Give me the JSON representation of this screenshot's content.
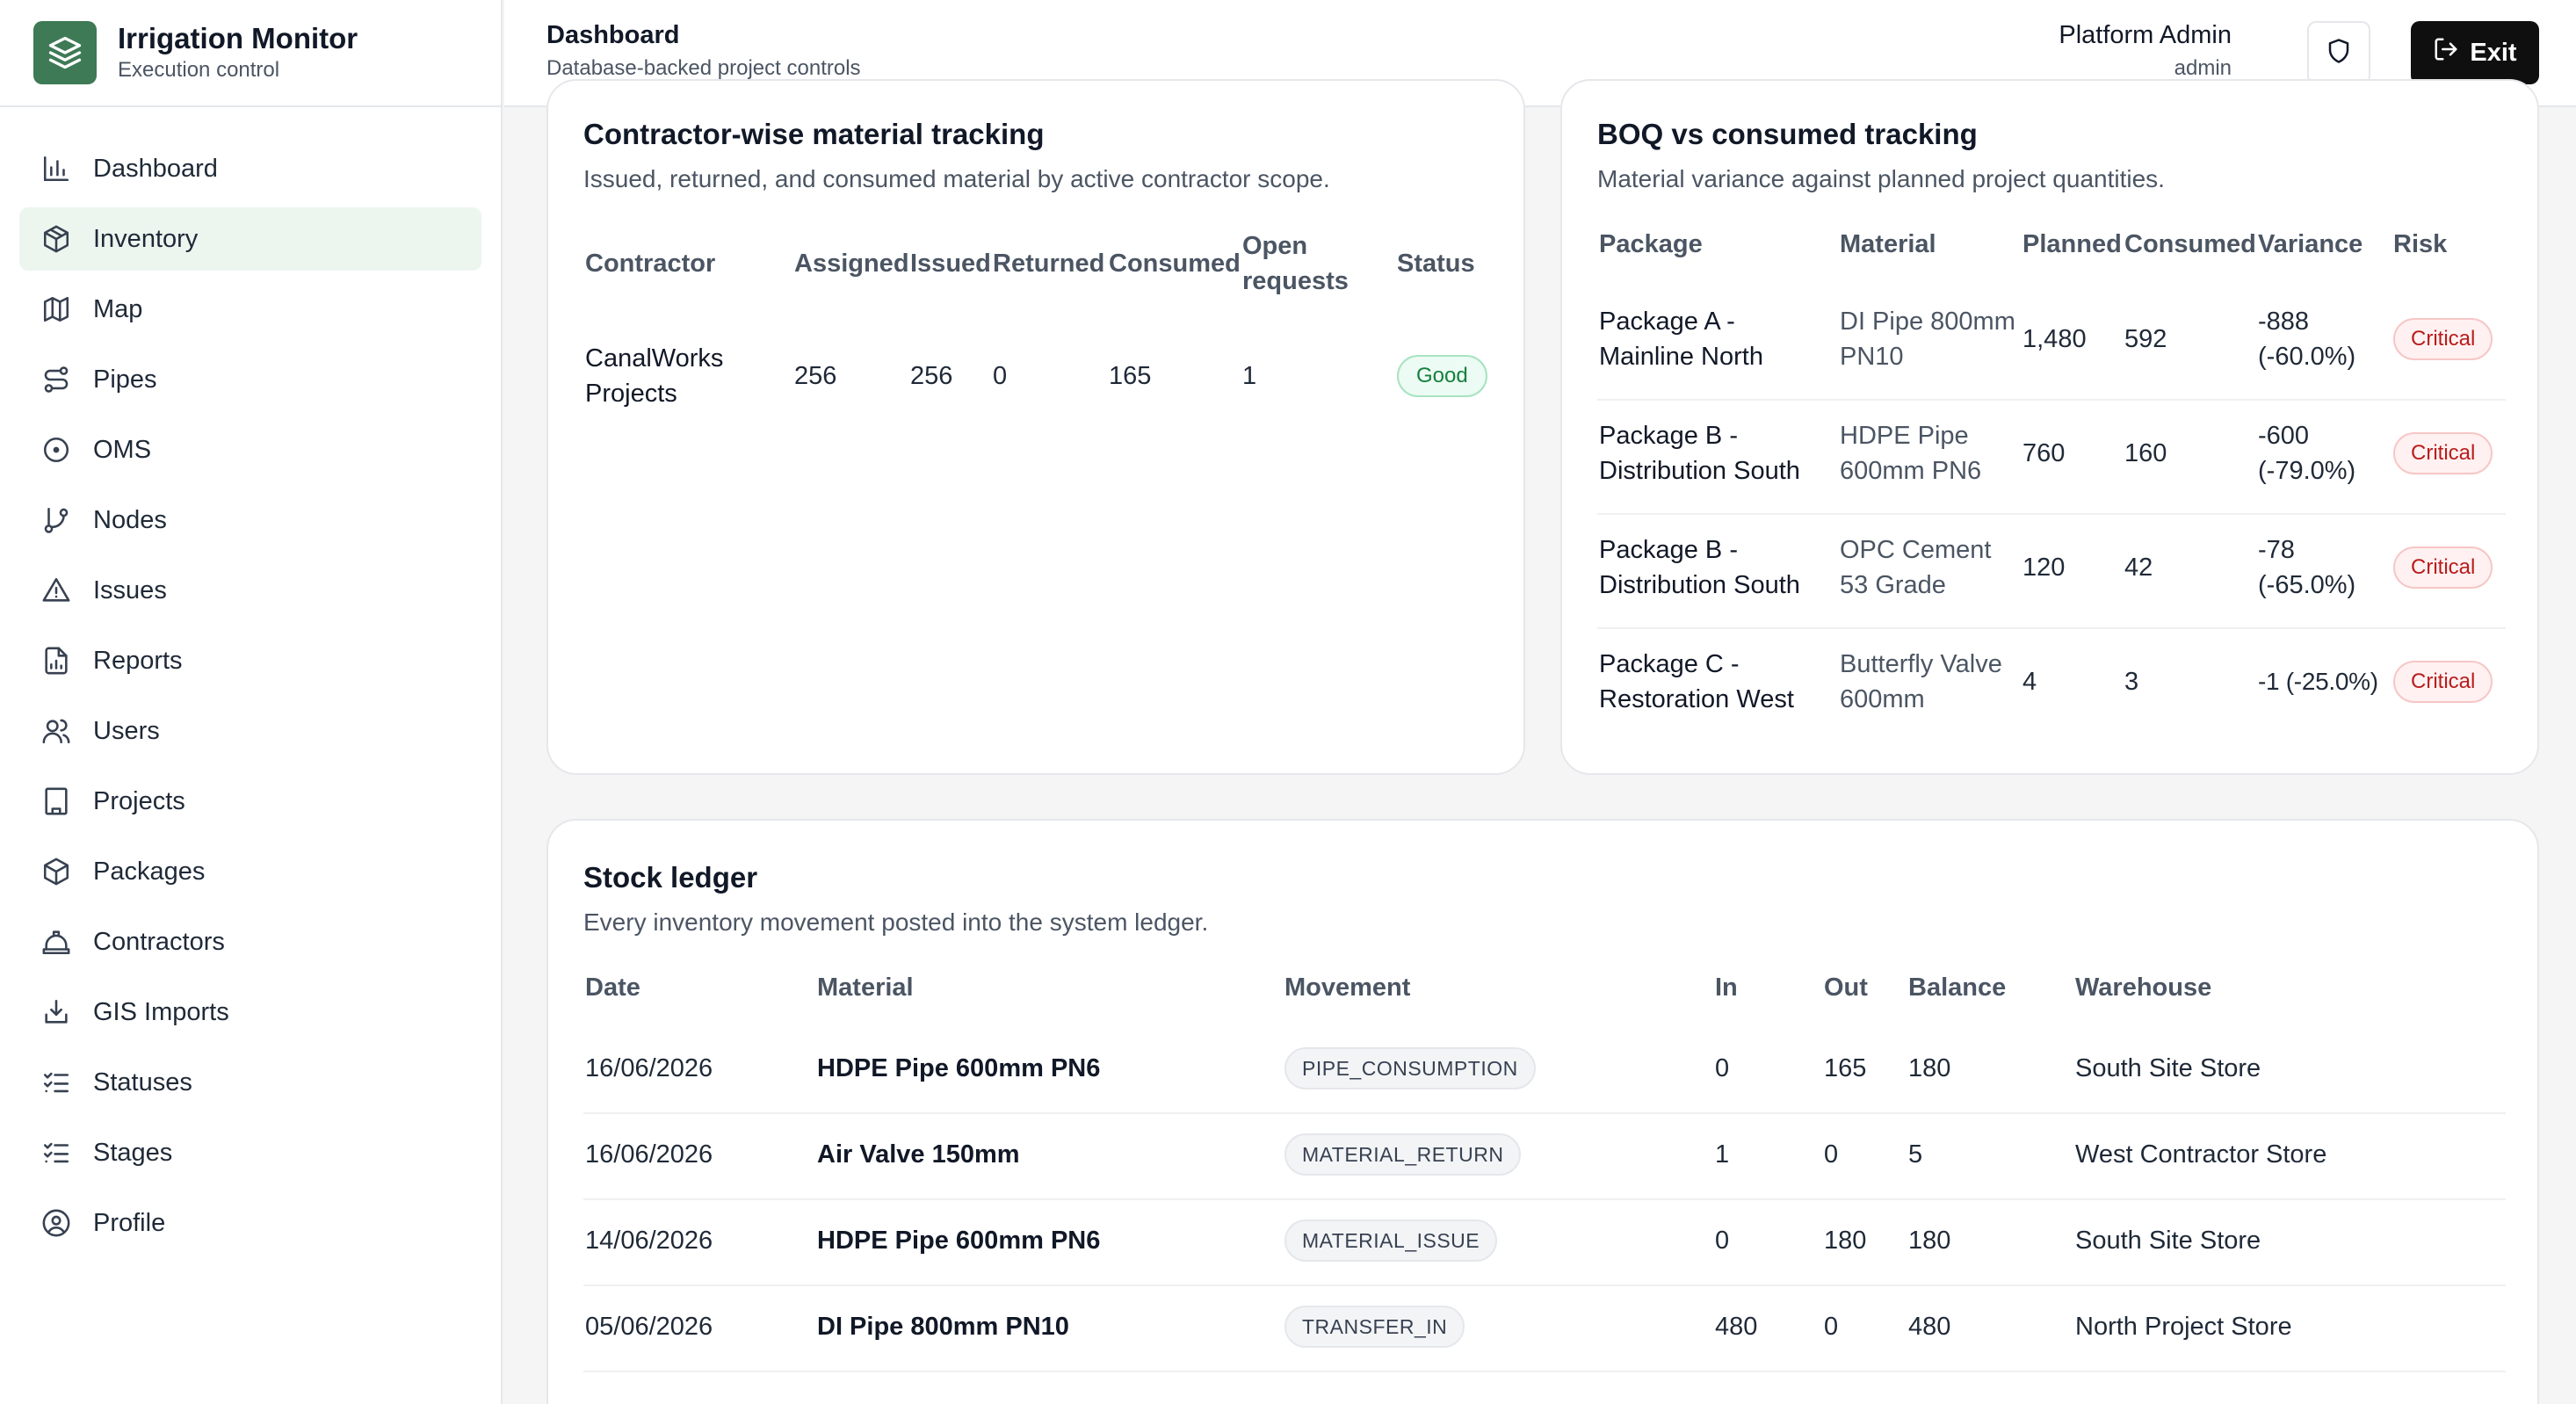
{
  "app": {
    "title": "Irrigation Monitor",
    "subtitle": "Execution control"
  },
  "sidebar": {
    "items": [
      {
        "label": "Dashboard",
        "icon": "bar-chart-icon"
      },
      {
        "label": "Inventory",
        "icon": "package-icon",
        "active": true
      },
      {
        "label": "Map",
        "icon": "map-icon"
      },
      {
        "label": "Pipes",
        "icon": "route-icon"
      },
      {
        "label": "OMS",
        "icon": "circle-dot-icon"
      },
      {
        "label": "Nodes",
        "icon": "git-branch-icon"
      },
      {
        "label": "Issues",
        "icon": "alert-triangle-icon"
      },
      {
        "label": "Reports",
        "icon": "file-chart-icon"
      },
      {
        "label": "Users",
        "icon": "users-icon"
      },
      {
        "label": "Projects",
        "icon": "building-icon"
      },
      {
        "label": "Packages",
        "icon": "box-icon"
      },
      {
        "label": "Contractors",
        "icon": "hard-hat-icon"
      },
      {
        "label": "GIS Imports",
        "icon": "import-icon"
      },
      {
        "label": "Statuses",
        "icon": "list-checks-icon"
      },
      {
        "label": "Stages",
        "icon": "list-checks-icon"
      },
      {
        "label": "Profile",
        "icon": "user-circle-icon"
      }
    ]
  },
  "header": {
    "title": "Dashboard",
    "subtitle": "Database-backed project controls",
    "user_name": "Platform Admin",
    "user_role": "admin",
    "exit_label": "Exit"
  },
  "contractor_card": {
    "title": "Contractor-wise material tracking",
    "subtitle": "Issued, returned, and consumed material by active contractor scope.",
    "columns": [
      "Contractor",
      "Assigned",
      "Issued",
      "Returned",
      "Consumed",
      "Open",
      "requests",
      "Status"
    ],
    "rows": [
      {
        "contractor_1": "CanalWorks",
        "contractor_2": "Projects",
        "assigned": "256",
        "issued": "256",
        "returned": "0",
        "consumed": "165",
        "open": "1",
        "status": "Good"
      }
    ]
  },
  "boq_card": {
    "title": "BOQ vs consumed tracking",
    "subtitle": "Material variance against planned project quantities.",
    "columns": [
      "Package",
      "Material",
      "Planned",
      "Consumed",
      "Variance",
      "Risk"
    ],
    "rows": [
      {
        "pkg_1": "Package A -",
        "pkg_2": "Mainline North",
        "mat_1": "DI Pipe 800mm",
        "mat_2": "PN10",
        "planned": "1,480",
        "consumed": "592",
        "var_1": "-888",
        "var_2": "(-60.0%)",
        "risk": "Critical"
      },
      {
        "pkg_1": "Package B -",
        "pkg_2": "Distribution South",
        "mat_1": "HDPE Pipe",
        "mat_2": "600mm PN6",
        "planned": "760",
        "consumed": "160",
        "var_1": "-600",
        "var_2": "(-79.0%)",
        "risk": "Critical"
      },
      {
        "pkg_1": "Package B -",
        "pkg_2": "Distribution South",
        "mat_1": "OPC Cement",
        "mat_2": "53 Grade",
        "planned": "120",
        "consumed": "42",
        "var_1": "-78",
        "var_2": "(-65.0%)",
        "risk": "Critical"
      },
      {
        "pkg_1": "Package C -",
        "pkg_2": "Restoration West",
        "mat_1": "Butterfly Valve",
        "mat_2": "600mm",
        "planned": "4",
        "consumed": "3",
        "var_1": "-1 (-25.0%)",
        "var_2": "",
        "risk": "Critical"
      }
    ]
  },
  "ledger_card": {
    "title": "Stock ledger",
    "subtitle": "Every inventory movement posted into the system ledger.",
    "columns": [
      "Date",
      "Material",
      "Movement",
      "In",
      "Out",
      "Balance",
      "Warehouse"
    ],
    "rows": [
      {
        "date": "16/06/2026",
        "material": "HDPE Pipe 600mm PN6",
        "movement": "PIPE_CONSUMPTION",
        "in": "0",
        "out": "165",
        "balance": "180",
        "warehouse": "South Site Store"
      },
      {
        "date": "16/06/2026",
        "material": "Air Valve 150mm",
        "movement": "MATERIAL_RETURN",
        "in": "1",
        "out": "0",
        "balance": "5",
        "warehouse": "West Contractor Store"
      },
      {
        "date": "14/06/2026",
        "material": "HDPE Pipe 600mm PN6",
        "movement": "MATERIAL_ISSUE",
        "in": "0",
        "out": "180",
        "balance": "180",
        "warehouse": "South Site Store"
      },
      {
        "date": "05/06/2026",
        "material": "DI Pipe 800mm PN10",
        "movement": "TRANSFER_IN",
        "in": "480",
        "out": "0",
        "balance": "480",
        "warehouse": "North Project Store"
      }
    ]
  },
  "colors": {
    "brand": "#3d7a55",
    "active_bg": "#ecf6ef",
    "critical": "#b91c1c",
    "good": "#15803d"
  }
}
